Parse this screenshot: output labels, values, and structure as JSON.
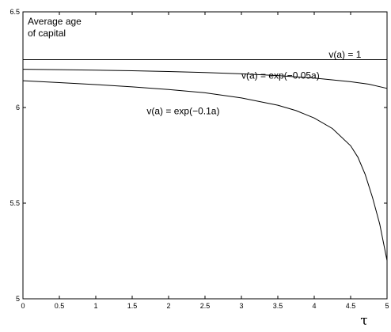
{
  "chart_data": {
    "type": "line",
    "title_lines": [
      "Average age",
      "of capital"
    ],
    "xlabel": "τ",
    "ylabel": "",
    "xlim": [
      0,
      5
    ],
    "ylim": [
      5,
      6.5
    ],
    "x_ticks": [
      0,
      0.5,
      1,
      1.5,
      2,
      2.5,
      3,
      3.5,
      4,
      4.5,
      5
    ],
    "x_tick_labels": [
      "0",
      "0.5",
      "1",
      "1.5",
      "2",
      "2.5",
      "3",
      "3.5",
      "4",
      "4.5",
      "5"
    ],
    "y_ticks": [
      5,
      5.5,
      6,
      6.5
    ],
    "y_tick_labels": [
      "5",
      "5.5",
      "6",
      "6.5"
    ],
    "grid": false,
    "legend": "none",
    "series": [
      {
        "name": "v(a) = 1",
        "color": "#000000",
        "x": [
          0,
          0.5,
          1,
          1.5,
          2,
          2.5,
          3,
          3.5,
          4,
          4.5,
          5
        ],
        "y": [
          6.25,
          6.25,
          6.25,
          6.25,
          6.25,
          6.25,
          6.25,
          6.25,
          6.25,
          6.25,
          6.25
        ]
      },
      {
        "name": "v(a) = exp(−0.05a)",
        "color": "#000000",
        "x": [
          0,
          0.5,
          1,
          1.5,
          2,
          2.5,
          3,
          3.5,
          4,
          4.5,
          4.75,
          5
        ],
        "y": [
          6.2,
          6.198,
          6.195,
          6.192,
          6.188,
          6.183,
          6.176,
          6.167,
          6.154,
          6.135,
          6.122,
          6.1
        ]
      },
      {
        "name": "v(a) = exp(−0.1a)",
        "color": "#000000",
        "x": [
          0,
          0.5,
          1,
          1.5,
          2,
          2.5,
          3,
          3.5,
          3.75,
          4,
          4.25,
          4.5,
          4.6,
          4.7,
          4.8,
          4.9,
          5
        ],
        "y": [
          6.14,
          6.13,
          6.12,
          6.108,
          6.094,
          6.077,
          6.05,
          6.012,
          5.984,
          5.945,
          5.89,
          5.8,
          5.74,
          5.65,
          5.53,
          5.39,
          5.2
        ]
      }
    ],
    "annotations": [
      {
        "text": "v(a) = 1",
        "x": 4.2,
        "y": 6.26
      },
      {
        "text": "v(a) = exp(−0.05a)",
        "x": 3.0,
        "y": 6.15
      },
      {
        "text": "v(a) = exp(−0.1a)",
        "x": 1.7,
        "y": 5.965
      }
    ]
  }
}
